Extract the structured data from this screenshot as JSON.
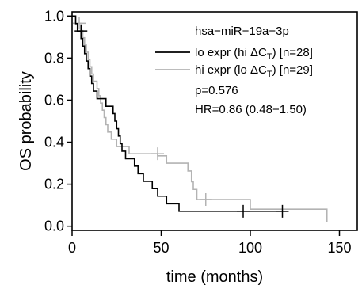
{
  "chart_data": {
    "type": "line",
    "subtype": "kaplan-meier-step",
    "xlabel": "time (months)",
    "ylabel": "OS probability",
    "xlim": [
      0,
      160
    ],
    "ylim": [
      -0.02,
      1.02
    ],
    "xticks": [
      0,
      50,
      100,
      150
    ],
    "yticks": [
      0.0,
      0.2,
      0.4,
      0.6,
      0.8,
      1.0
    ],
    "ytick_labels": [
      "0.0",
      "0.2",
      "0.4",
      "0.6",
      "0.8",
      "1.0"
    ],
    "xtick_labels": [
      "0",
      "50",
      "100",
      "150"
    ],
    "grid": false,
    "legend": {
      "title": "hsa−miR−19a−3p",
      "placement": "top-right",
      "entries": [
        {
          "prefix": "lo expr (hi ΔC",
          "subscript": "T",
          "suffix": ") [n=28]",
          "color": "#000000"
        },
        {
          "prefix": "hi expr (lo ΔC",
          "subscript": "T",
          "suffix": ") [n=29]",
          "color": "#b3b3b3"
        }
      ]
    },
    "stats": {
      "p_value": "p=0.576",
      "hazard_ratio": "HR=0.86 (0.48−1.50)"
    },
    "series": [
      {
        "color": "#000000",
        "steps": [
          [
            0,
            1.0
          ],
          [
            2,
            0.964
          ],
          [
            3,
            0.929
          ],
          [
            5,
            0.893
          ],
          [
            6,
            0.857
          ],
          [
            7,
            0.821
          ],
          [
            8,
            0.786
          ],
          [
            9,
            0.75
          ],
          [
            10,
            0.714
          ],
          [
            11,
            0.679
          ],
          [
            12,
            0.643
          ],
          [
            14,
            0.607
          ],
          [
            19,
            0.571
          ],
          [
            23,
            0.536
          ],
          [
            24,
            0.5
          ],
          [
            25,
            0.464
          ],
          [
            26,
            0.429
          ],
          [
            27,
            0.393
          ],
          [
            28,
            0.357
          ],
          [
            30,
            0.321
          ],
          [
            35,
            0.286
          ],
          [
            37,
            0.25
          ],
          [
            40,
            0.214
          ],
          [
            45,
            0.179
          ],
          [
            48,
            0.143
          ],
          [
            53,
            0.107
          ],
          [
            60,
            0.071
          ]
        ],
        "end": 121,
        "censored": [
          [
            5,
            0.929
          ],
          [
            96,
            0.071
          ],
          [
            118,
            0.071
          ]
        ]
      },
      {
        "color": "#b3b3b3",
        "steps": [
          [
            0,
            1.0
          ],
          [
            2,
            0.966
          ],
          [
            5,
            0.931
          ],
          [
            6,
            0.897
          ],
          [
            7,
            0.862
          ],
          [
            8,
            0.828
          ],
          [
            9,
            0.793
          ],
          [
            10,
            0.759
          ],
          [
            11,
            0.724
          ],
          [
            12,
            0.69
          ],
          [
            14,
            0.655
          ],
          [
            15,
            0.621
          ],
          [
            16,
            0.586
          ],
          [
            17,
            0.552
          ],
          [
            18,
            0.517
          ],
          [
            19,
            0.483
          ],
          [
            20,
            0.448
          ],
          [
            22,
            0.414
          ],
          [
            25,
            0.379
          ],
          [
            32,
            0.345
          ],
          [
            48,
            0.335
          ],
          [
            53,
            0.3
          ],
          [
            65,
            0.263
          ],
          [
            67,
            0.212
          ],
          [
            68,
            0.175
          ],
          [
            70,
            0.127
          ],
          [
            100,
            0.081
          ],
          [
            143,
            0.02
          ]
        ],
        "end": 143,
        "censored": [
          [
            4,
            0.966
          ],
          [
            48,
            0.345
          ],
          [
            75,
            0.127
          ]
        ]
      }
    ]
  }
}
